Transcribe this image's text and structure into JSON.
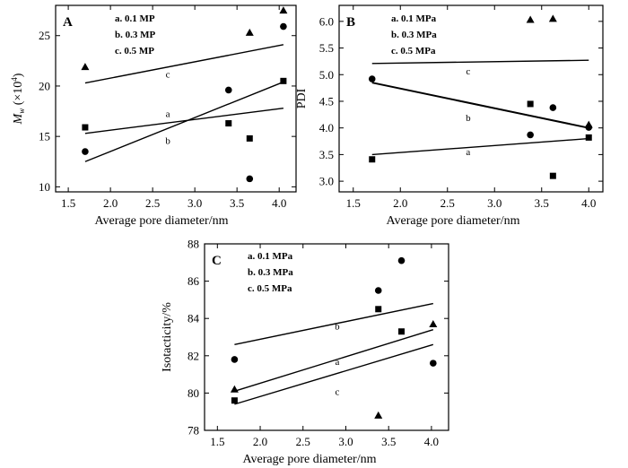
{
  "chart_data": [
    {
      "id": "A",
      "type": "scatter",
      "panel_label": "A",
      "xlabel": "Average pore diameter/nm",
      "ylabel_main": "M",
      "ylabel_sub": "w",
      "ylabel_rest": " (×10",
      "ylabel_sup": "4",
      "ylabel_end": ")",
      "xlim": [
        1.35,
        4.2
      ],
      "ylim": [
        9.5,
        28
      ],
      "xticks": [
        1.5,
        2.0,
        2.5,
        3.0,
        3.5,
        4.0
      ],
      "xtick_labels": [
        "1.5",
        "2.0",
        "2.5",
        "3.0",
        "3.5",
        "4.0"
      ],
      "yticks": [
        10,
        15,
        20,
        25
      ],
      "ytick_labels": [
        "10",
        "15",
        "20",
        "25"
      ],
      "legend": [
        "a. 0.1 MP",
        "b. 0.3 MP",
        "c. 0.5 MP"
      ],
      "series": [
        {
          "marker": "square",
          "x": [
            1.7,
            3.4,
            3.65,
            4.05
          ],
          "y": [
            15.9,
            16.3,
            14.8,
            20.5
          ],
          "fit_x": [
            1.7,
            4.05
          ],
          "fit_y": [
            15.3,
            17.8
          ],
          "fit_label": "a",
          "fit_label_xy": [
            2.68,
            17.3
          ]
        },
        {
          "marker": "circle",
          "x": [
            1.7,
            3.4,
            3.65,
            4.05
          ],
          "y": [
            13.5,
            19.6,
            10.8,
            25.9
          ],
          "fit_x": [
            1.7,
            4.05
          ],
          "fit_y": [
            12.5,
            20.4
          ],
          "fit_label": "b",
          "fit_label_xy": [
            2.68,
            14.6
          ]
        },
        {
          "marker": "triangle",
          "x": [
            1.7,
            3.65,
            4.05
          ],
          "y": [
            21.9,
            25.3,
            27.5
          ],
          "fit_x": [
            1.7,
            4.05
          ],
          "fit_y": [
            20.3,
            24.1
          ],
          "fit_label": "c",
          "fit_label_xy": [
            2.68,
            21.2
          ]
        }
      ]
    },
    {
      "id": "B",
      "type": "scatter",
      "panel_label": "B",
      "xlabel": "Average pore diameter/nm",
      "ylabel": "PDI",
      "xlim": [
        1.35,
        4.15
      ],
      "ylim": [
        2.8,
        6.3
      ],
      "xticks": [
        1.5,
        2.0,
        2.5,
        3.0,
        3.5,
        4.0
      ],
      "xtick_labels": [
        "1.5",
        "2.0",
        "2.5",
        "3.0",
        "3.5",
        "4.0"
      ],
      "yticks": [
        3.0,
        3.5,
        4.0,
        4.5,
        5.0,
        5.5,
        6.0
      ],
      "ytick_labels": [
        "3.0",
        "3.5",
        "4.0",
        "4.5",
        "5.0",
        "5.5",
        "6.0"
      ],
      "legend": [
        "a. 0.1 MPa",
        "b. 0.3 MPa",
        "c. 0.5 MPa"
      ],
      "series": [
        {
          "marker": "square",
          "x": [
            1.7,
            3.38,
            3.62,
            4.0
          ],
          "y": [
            3.41,
            4.45,
            3.1,
            3.82
          ],
          "fit_x": [
            1.7,
            4.0
          ],
          "fit_y": [
            3.5,
            3.8
          ],
          "fit_label": "a",
          "fit_label_xy": [
            2.72,
            3.56
          ]
        },
        {
          "marker": "circle",
          "x": [
            1.7,
            3.38,
            3.62,
            4.0
          ],
          "y": [
            4.92,
            3.87,
            4.38,
            4.01
          ],
          "fit_x": [
            1.7,
            4.0
          ],
          "fit_y": [
            4.85,
            4.0
          ],
          "fit_label": "b",
          "fit_label_xy": [
            2.72,
            4.2
          ]
        },
        {
          "marker": "triangle",
          "x": [
            3.38,
            3.62,
            4.0
          ],
          "y": [
            6.03,
            6.05,
            4.06
          ],
          "fit_x": [
            1.7,
            4.0
          ],
          "fit_y": [
            5.21,
            5.27
          ],
          "fit_label": "c",
          "fit_label_xy": [
            2.72,
            5.07
          ]
        }
      ]
    },
    {
      "id": "C",
      "type": "scatter",
      "panel_label": "C",
      "xlabel": "Average pore diameter/nm",
      "ylabel": "Isotacticity/%",
      "xlim": [
        1.35,
        4.2
      ],
      "ylim": [
        78,
        88
      ],
      "xticks": [
        1.5,
        2.0,
        2.5,
        3.0,
        3.5,
        4.0
      ],
      "xtick_labels": [
        "1.5",
        "2.0",
        "2.5",
        "3.0",
        "3.5",
        "4.0"
      ],
      "yticks": [
        78,
        80,
        82,
        84,
        86,
        88
      ],
      "ytick_labels": [
        "78",
        "80",
        "82",
        "84",
        "86",
        "88"
      ],
      "legend": [
        "a. 0.1 MPa",
        "b. 0.3 MPa",
        "c. 0.5 MPa"
      ],
      "series": [
        {
          "marker": "square",
          "x": [
            1.7,
            3.38,
            3.65
          ],
          "y": [
            79.6,
            84.5,
            83.3
          ],
          "fit_x": [
            1.7,
            4.02
          ],
          "fit_y": [
            80.1,
            83.4
          ],
          "fit_label": "a",
          "fit_label_xy": [
            2.9,
            81.7
          ]
        },
        {
          "marker": "circle",
          "x": [
            1.7,
            3.38,
            3.65,
            4.02
          ],
          "y": [
            81.8,
            85.5,
            87.1,
            81.6
          ],
          "fit_x": [
            1.7,
            4.02
          ],
          "fit_y": [
            82.6,
            84.8
          ],
          "fit_label": "b",
          "fit_label_xy": [
            2.9,
            83.6
          ]
        },
        {
          "marker": "triangle",
          "x": [
            1.7,
            3.38,
            4.02
          ],
          "y": [
            80.2,
            78.8,
            83.7
          ],
          "fit_x": [
            1.7,
            4.02
          ],
          "fit_y": [
            79.4,
            82.6
          ],
          "fit_label": "c",
          "fit_label_xy": [
            2.9,
            80.1
          ]
        }
      ]
    }
  ]
}
